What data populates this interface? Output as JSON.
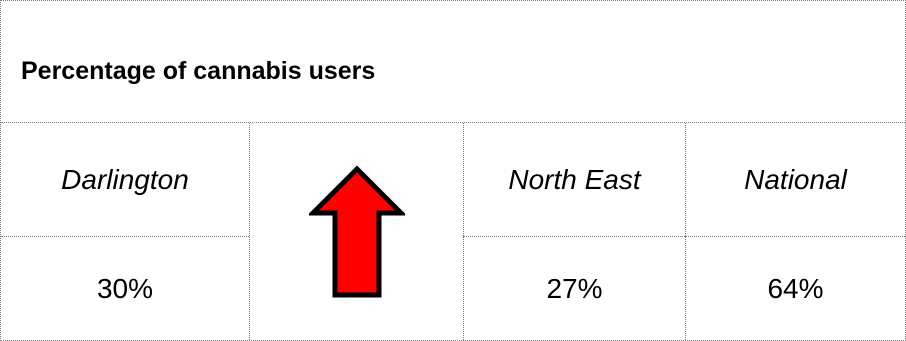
{
  "table": {
    "title": "Percentage of cannabis users",
    "columns": [
      "Darlington",
      "",
      "North East",
      "National"
    ],
    "values": [
      "30%",
      "",
      "27%",
      "64%"
    ],
    "trend_icon": "red-up-arrow-icon",
    "arrow_fill": "#ff0000",
    "arrow_stroke": "#000000"
  }
}
